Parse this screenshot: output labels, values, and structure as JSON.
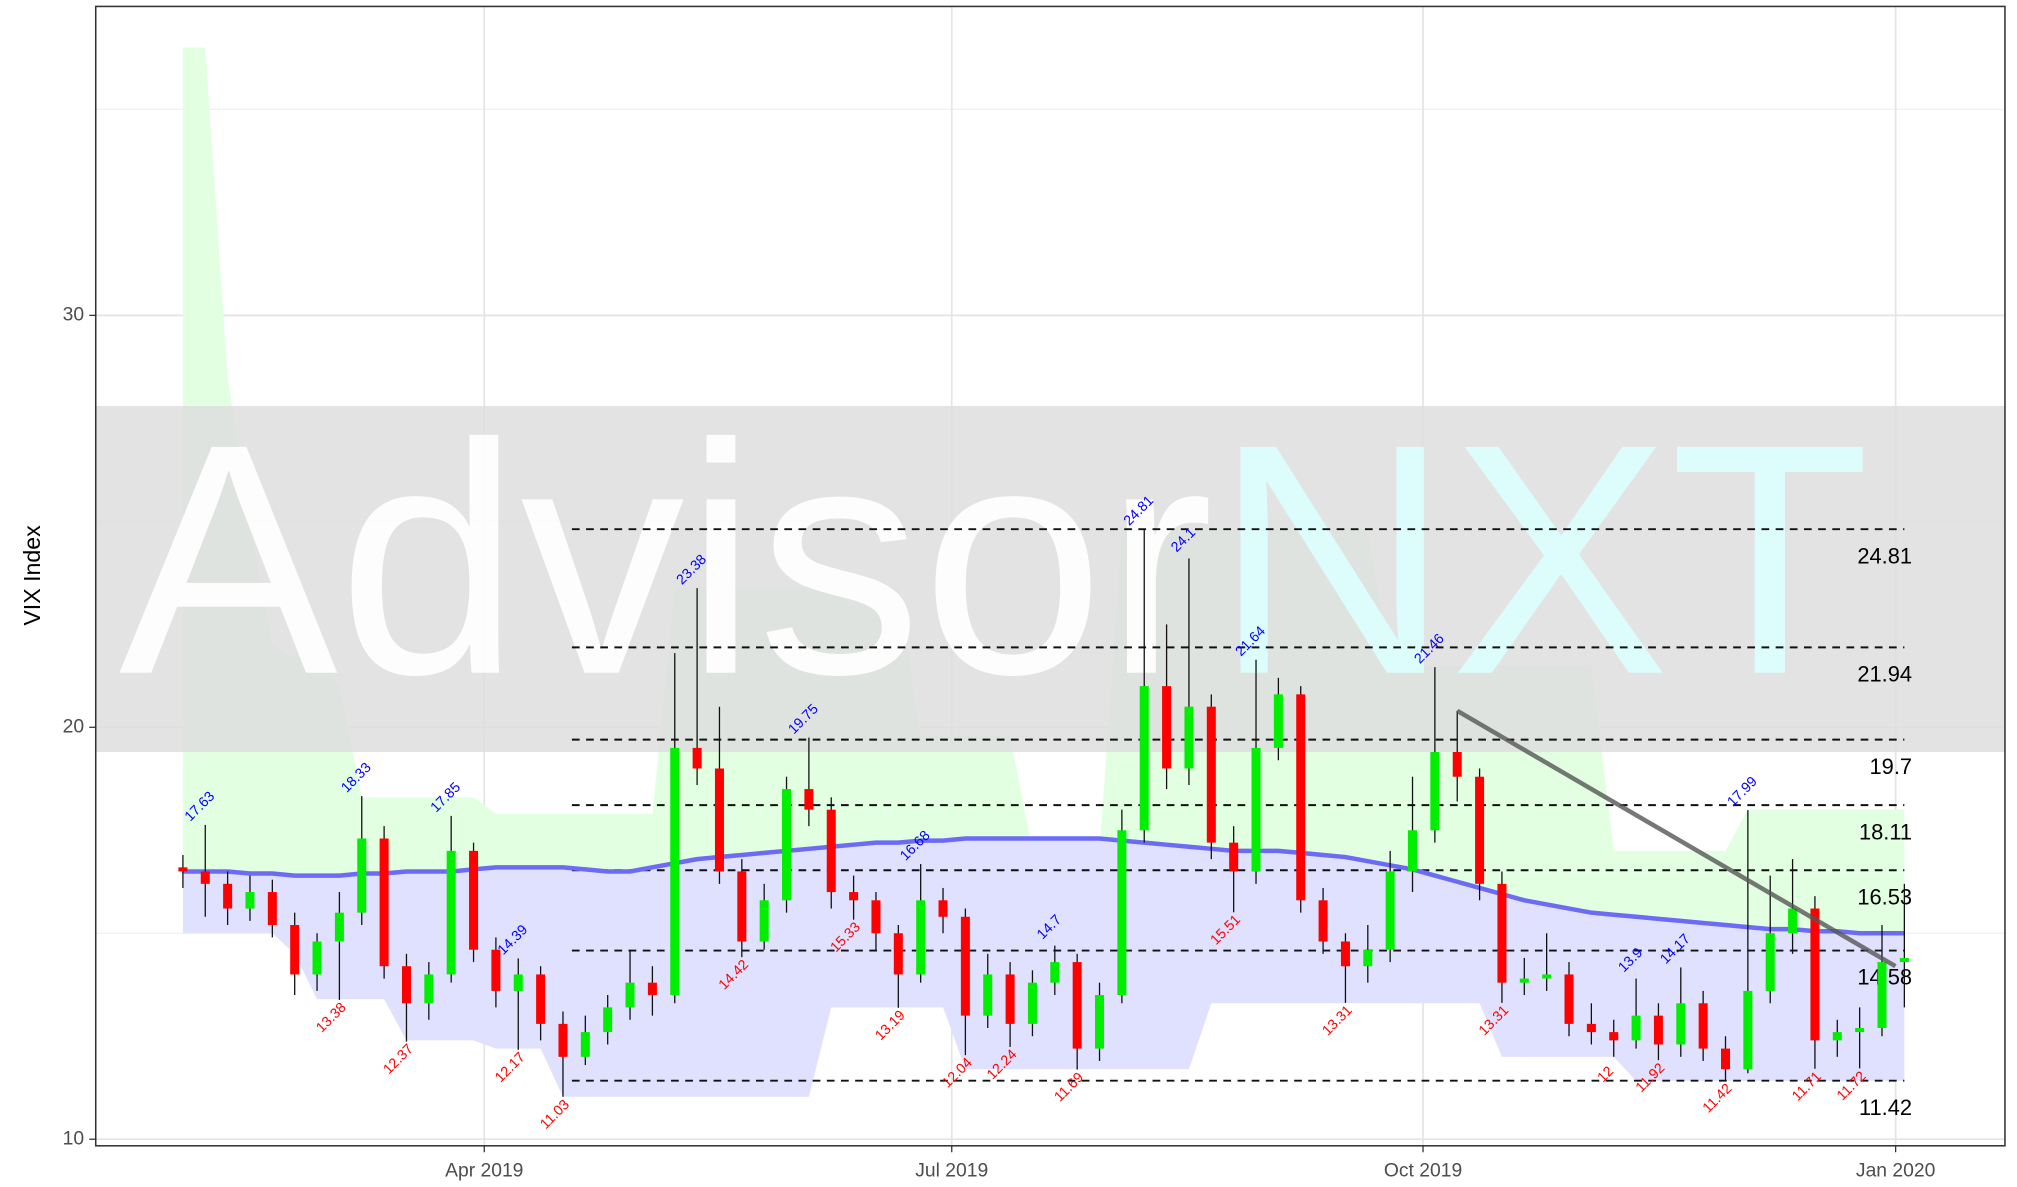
{
  "chart_data": {
    "type": "candlestick",
    "y_label": "VIX Index",
    "watermark": [
      "Advis",
      "or",
      "NXT"
    ],
    "ylim": [
      9.84,
      37.5
    ],
    "yticks": [
      10,
      20,
      30
    ],
    "yminor": [
      15,
      25,
      35
    ],
    "xlim": [
      -3.9,
      81.5
    ],
    "xticks": [
      {
        "value": 13.48,
        "label": "Apr 2019"
      },
      {
        "value": 34.39,
        "label": "Jul 2019"
      },
      {
        "value": 55.47,
        "label": "Oct 2019"
      },
      {
        "value": 76.61,
        "label": "Jan 2020"
      }
    ],
    "grid": true,
    "up_color": "#00ee00",
    "down_color": "#ff0000",
    "ohlc": [
      [
        16.6,
        16.9,
        16.1,
        16.5
      ],
      [
        16.5,
        17.63,
        15.4,
        16.2
      ],
      [
        16.2,
        16.5,
        15.2,
        15.6
      ],
      [
        15.6,
        16.4,
        15.3,
        16.0
      ],
      [
        16.0,
        16.3,
        14.9,
        15.2
      ],
      [
        15.2,
        15.5,
        13.5,
        14.0
      ],
      [
        14.0,
        15.0,
        13.6,
        14.8
      ],
      [
        14.8,
        16.0,
        13.38,
        15.5
      ],
      [
        15.5,
        18.33,
        15.2,
        17.3
      ],
      [
        17.3,
        17.6,
        13.9,
        14.2
      ],
      [
        14.2,
        14.5,
        12.37,
        13.3
      ],
      [
        13.3,
        14.3,
        12.9,
        14.0
      ],
      [
        14.0,
        17.85,
        13.8,
        17.0
      ],
      [
        17.0,
        17.2,
        14.3,
        14.6
      ],
      [
        14.6,
        14.9,
        13.2,
        13.6
      ],
      [
        13.6,
        14.39,
        12.17,
        14.0
      ],
      [
        14.0,
        14.2,
        12.4,
        12.8
      ],
      [
        12.8,
        13.1,
        11.03,
        12.0
      ],
      [
        12.0,
        13.0,
        11.8,
        12.6
      ],
      [
        12.6,
        13.5,
        12.3,
        13.2
      ],
      [
        13.2,
        14.6,
        12.9,
        13.8
      ],
      [
        13.8,
        14.2,
        13.0,
        13.5
      ],
      [
        13.5,
        21.8,
        13.3,
        19.5
      ],
      [
        19.5,
        23.38,
        18.6,
        19.0
      ],
      [
        19.0,
        20.5,
        16.2,
        16.5
      ],
      [
        16.5,
        16.8,
        14.42,
        14.8
      ],
      [
        14.8,
        16.2,
        14.6,
        15.8
      ],
      [
        15.8,
        18.8,
        15.5,
        18.5
      ],
      [
        18.5,
        19.75,
        17.6,
        18.0
      ],
      [
        18.0,
        18.3,
        15.6,
        16.0
      ],
      [
        16.0,
        16.4,
        15.33,
        15.8
      ],
      [
        15.8,
        16.0,
        14.6,
        15.0
      ],
      [
        15.0,
        15.2,
        13.19,
        14.0
      ],
      [
        14.0,
        16.68,
        13.8,
        15.8
      ],
      [
        15.8,
        16.1,
        15.0,
        15.4
      ],
      [
        15.4,
        15.6,
        12.04,
        13.0
      ],
      [
        13.0,
        14.5,
        12.7,
        14.0
      ],
      [
        14.0,
        14.3,
        12.24,
        12.8
      ],
      [
        12.8,
        14.1,
        12.5,
        13.8
      ],
      [
        13.8,
        14.7,
        13.5,
        14.3
      ],
      [
        14.3,
        14.5,
        11.69,
        12.2
      ],
      [
        12.2,
        13.8,
        11.9,
        13.5
      ],
      [
        13.5,
        18.0,
        13.3,
        17.5
      ],
      [
        17.5,
        24.81,
        17.2,
        21.0
      ],
      [
        21.0,
        22.5,
        18.5,
        19.0
      ],
      [
        19.0,
        24.1,
        18.6,
        20.5
      ],
      [
        20.5,
        20.8,
        16.8,
        17.2
      ],
      [
        17.2,
        17.6,
        15.51,
        16.5
      ],
      [
        16.5,
        21.64,
        16.2,
        19.5
      ],
      [
        19.5,
        21.2,
        19.2,
        20.8
      ],
      [
        20.8,
        21.0,
        15.5,
        15.8
      ],
      [
        15.8,
        16.1,
        14.5,
        14.8
      ],
      [
        14.8,
        15.0,
        13.31,
        14.2
      ],
      [
        14.2,
        15.2,
        13.8,
        14.6
      ],
      [
        14.6,
        17.0,
        14.3,
        16.5
      ],
      [
        16.5,
        18.8,
        16.0,
        17.5
      ],
      [
        17.5,
        21.46,
        17.2,
        19.4
      ],
      [
        19.4,
        20.4,
        18.2,
        18.8
      ],
      [
        18.8,
        19.0,
        15.8,
        16.2
      ],
      [
        16.2,
        16.5,
        13.31,
        13.8
      ],
      [
        13.8,
        14.4,
        13.5,
        13.9
      ],
      [
        13.9,
        15.0,
        13.6,
        14.0
      ],
      [
        14.0,
        14.3,
        12.5,
        12.8
      ],
      [
        12.8,
        13.3,
        12.3,
        12.6
      ],
      [
        12.6,
        12.9,
        12,
        12.4
      ],
      [
        12.4,
        13.9,
        12.2,
        13.0
      ],
      [
        13.0,
        13.3,
        11.92,
        12.3
      ],
      [
        12.3,
        14.17,
        12.0,
        13.3
      ],
      [
        13.3,
        13.6,
        11.9,
        12.2
      ],
      [
        12.2,
        12.5,
        11.42,
        11.7
      ],
      [
        11.7,
        17.99,
        11.6,
        13.6
      ],
      [
        13.6,
        16.4,
        13.3,
        15.0
      ],
      [
        15.0,
        16.8,
        14.5,
        15.6
      ],
      [
        15.6,
        15.9,
        11.71,
        12.4
      ],
      [
        12.4,
        12.9,
        12.0,
        12.6
      ],
      [
        12.6,
        13.2,
        11.72,
        12.7
      ],
      [
        12.7,
        15.2,
        12.5,
        14.3
      ],
      [
        14.3,
        16.2,
        13.2,
        14.4
      ]
    ],
    "high_labels": [
      null,
      "17.63",
      null,
      null,
      null,
      null,
      null,
      null,
      "18.33",
      null,
      null,
      null,
      "17.85",
      null,
      null,
      "14.39",
      null,
      null,
      null,
      null,
      null,
      null,
      null,
      "23.38",
      null,
      null,
      null,
      null,
      "19.75",
      null,
      null,
      null,
      null,
      "16.68",
      null,
      null,
      null,
      null,
      null,
      "14.7",
      null,
      null,
      null,
      "24.81",
      null,
      "24.1",
      null,
      null,
      "21.64",
      null,
      null,
      null,
      null,
      null,
      null,
      null,
      "21.46",
      null,
      null,
      null,
      null,
      null,
      null,
      null,
      null,
      "13.9",
      null,
      "14.17",
      null,
      null,
      "17.99",
      null,
      null,
      null,
      null,
      null,
      null,
      null
    ],
    "low_labels": [
      null,
      null,
      null,
      null,
      null,
      null,
      null,
      "13.38",
      null,
      null,
      "12.37",
      null,
      null,
      null,
      null,
      "12.17",
      null,
      "11.03",
      null,
      null,
      null,
      null,
      null,
      null,
      null,
      "14.42",
      null,
      null,
      null,
      null,
      "15.33",
      null,
      "13.19",
      null,
      null,
      "12.04",
      null,
      "12.24",
      null,
      null,
      "11.69",
      null,
      null,
      null,
      null,
      null,
      null,
      "15.51",
      null,
      null,
      null,
      null,
      "13.31",
      null,
      null,
      null,
      null,
      null,
      null,
      "13.31",
      null,
      null,
      null,
      null,
      "12",
      null,
      "11.92",
      null,
      null,
      "11.42",
      null,
      null,
      null,
      "11.71",
      null,
      "11.72",
      null,
      null
    ],
    "ma": [
      16.5,
      16.5,
      16.5,
      16.45,
      16.45,
      16.4,
      16.4,
      16.4,
      16.45,
      16.45,
      16.5,
      16.5,
      16.5,
      16.55,
      16.6,
      16.6,
      16.6,
      16.6,
      16.55,
      16.5,
      16.5,
      16.6,
      16.7,
      16.8,
      16.85,
      16.9,
      16.95,
      17.0,
      17.05,
      17.1,
      17.15,
      17.2,
      17.2,
      17.25,
      17.25,
      17.3,
      17.3,
      17.3,
      17.3,
      17.3,
      17.3,
      17.3,
      17.25,
      17.2,
      17.15,
      17.1,
      17.05,
      17.0,
      17.0,
      17.0,
      16.95,
      16.9,
      16.85,
      16.75,
      16.65,
      16.55,
      16.4,
      16.25,
      16.1,
      15.95,
      15.8,
      15.7,
      15.6,
      15.5,
      15.45,
      15.4,
      15.35,
      15.3,
      15.25,
      15.2,
      15.15,
      15.1,
      15.1,
      15.05,
      15.05,
      15.0,
      15.0,
      15.0
    ],
    "ma_color": "#6b6bf5",
    "upper_band": [
      36.5,
      36.5,
      28.5,
      25,
      22,
      21.7,
      21.7,
      21,
      18.3,
      18.3,
      18.3,
      18.3,
      18.3,
      18.3,
      17.9,
      17.9,
      17.9,
      17.9,
      17.9,
      17.9,
      17.9,
      17.9,
      23.4,
      23.4,
      23.4,
      23.4,
      23.4,
      23.4,
      23.4,
      23.4,
      23.4,
      23.4,
      23.4,
      19.8,
      19.8,
      19.8,
      19.8,
      19.8,
      17,
      17,
      17,
      17,
      24.8,
      24.8,
      24.8,
      24.8,
      24.8,
      24.8,
      24.8,
      24.8,
      24.8,
      24.8,
      24.8,
      24.8,
      21.5,
      21.5,
      21.5,
      21.5,
      21.5,
      21.5,
      21.5,
      21.5,
      21.5,
      21.5,
      17,
      17,
      17,
      17,
      17,
      17,
      18,
      18,
      18,
      18,
      18,
      18,
      18,
      18
    ],
    "lower_band": [
      15,
      15,
      15,
      15,
      15,
      14.5,
      13.4,
      13.4,
      13.4,
      13.4,
      12.4,
      12.4,
      12.4,
      12.4,
      12.2,
      12.2,
      12.2,
      11.03,
      11.03,
      11.03,
      11.03,
      11.03,
      11.03,
      11.03,
      11.03,
      11.03,
      11.03,
      11.03,
      11.03,
      13.2,
      13.2,
      13.2,
      13.2,
      13.2,
      13.2,
      11.7,
      11.7,
      11.7,
      11.7,
      11.7,
      11.7,
      11.7,
      11.7,
      11.7,
      11.7,
      11.7,
      13.3,
      13.3,
      13.3,
      13.3,
      13.3,
      13.3,
      13.3,
      13.3,
      13.3,
      13.3,
      13.3,
      13.3,
      13.3,
      12,
      12,
      12,
      12,
      12,
      12,
      11.42,
      11.42,
      11.42,
      11.42,
      11.42,
      11.42,
      11.42,
      11.42,
      11.42,
      11.42,
      11.42,
      11.42,
      11.42
    ],
    "upper_band_color": "#e2ffe2",
    "lower_band_color": "#e0e0ff",
    "zone": [
      19.4,
      27.8
    ],
    "zone_color": "#dedede",
    "levels": [
      24.81,
      21.94,
      19.7,
      18.11,
      16.53,
      14.58,
      11.42
    ],
    "levels_from": 17.4,
    "trend_line": {
      "x": [
        57,
        76.6
      ],
      "y": [
        20.4,
        14.2
      ],
      "color": "#555555"
    }
  }
}
